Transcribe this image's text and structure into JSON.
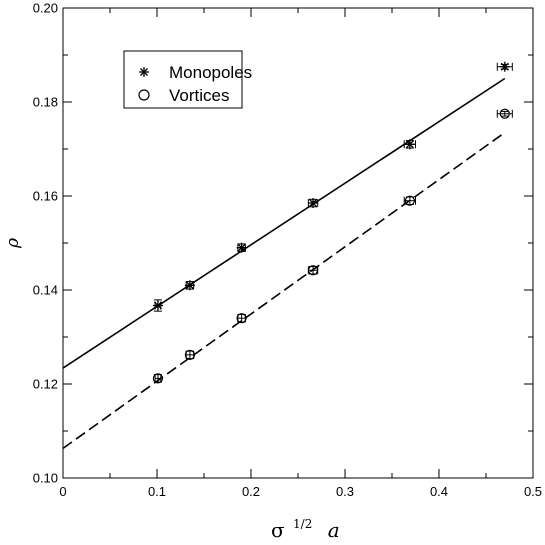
{
  "chart_data": {
    "type": "scatter",
    "title": "",
    "xlabel": {
      "base": "σ",
      "sup": "1/2",
      "var": "a"
    },
    "ylabel": "ρ",
    "xlim": [
      0,
      0.5
    ],
    "ylim": [
      0.1,
      0.2
    ],
    "x_ticks": [
      "0",
      "0.1",
      "0.2",
      "0.3",
      "0.4",
      "0.5"
    ],
    "y_ticks": [
      "0.10",
      "0.12",
      "0.14",
      "0.16",
      "0.18",
      "0.20"
    ],
    "grid": false,
    "legend_position": "top-left",
    "series": [
      {
        "name": "Monopoles",
        "marker": "asterisk",
        "points": [
          {
            "x": 0.101,
            "y": 0.1367,
            "xerr": 0.003,
            "yerr": 0.0012
          },
          {
            "x": 0.135,
            "y": 0.141,
            "xerr": 0.004,
            "yerr": 0.0008
          },
          {
            "x": 0.19,
            "y": 0.149,
            "xerr": 0.004,
            "yerr": 0.0008
          },
          {
            "x": 0.266,
            "y": 0.1585,
            "xerr": 0.005,
            "yerr": 0.0008
          },
          {
            "x": 0.369,
            "y": 0.171,
            "xerr": 0.006,
            "yerr": 0.0008
          },
          {
            "x": 0.47,
            "y": 0.1875,
            "xerr": 0.008,
            "yerr": 0.0005
          }
        ],
        "fit": {
          "style": "solid",
          "x": [
            0,
            0.47
          ],
          "y": [
            0.1234,
            0.185
          ]
        }
      },
      {
        "name": "Vortices",
        "marker": "circle",
        "points": [
          {
            "x": 0.101,
            "y": 0.1212,
            "xerr": 0.003,
            "yerr": 0.0008
          },
          {
            "x": 0.135,
            "y": 0.1262,
            "xerr": 0.004,
            "yerr": 0.0008
          },
          {
            "x": 0.19,
            "y": 0.134,
            "xerr": 0.004,
            "yerr": 0.0008
          },
          {
            "x": 0.266,
            "y": 0.1442,
            "xerr": 0.005,
            "yerr": 0.0008
          },
          {
            "x": 0.369,
            "y": 0.159,
            "xerr": 0.006,
            "yerr": 0.0008
          },
          {
            "x": 0.47,
            "y": 0.1775,
            "xerr": 0.008,
            "yerr": 0.0005
          }
        ],
        "fit": {
          "style": "dashed",
          "x": [
            0,
            0.47
          ],
          "y": [
            0.1063,
            0.1735
          ]
        }
      }
    ]
  }
}
